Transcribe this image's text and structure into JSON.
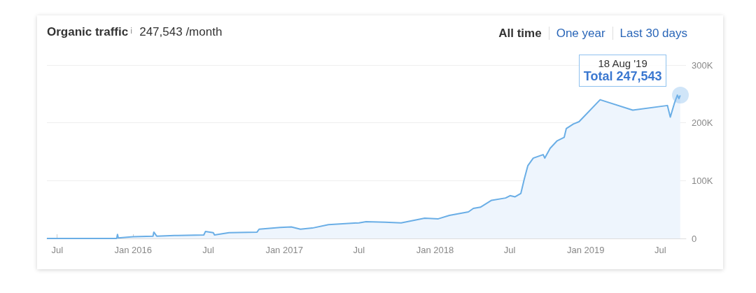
{
  "chart_data": {
    "type": "area",
    "title": "Organic traffic",
    "subtitle": "247,543 /month",
    "annotations": [
      "18 Aug '19",
      "Total 247,543",
      "All time",
      "One year",
      "Last 30 days"
    ],
    "x": [
      "2015-06-06",
      "2015-11-22",
      "2015-11-24",
      "2015-11-26",
      "2016-01-01",
      "2016-02-18",
      "2016-02-20",
      "2016-02-27",
      "2016-04-10",
      "2016-06-20",
      "2016-06-24",
      "2016-07-13",
      "2016-07-16",
      "2016-08-20",
      "2016-10-27",
      "2016-11-01",
      "2016-12-22",
      "2017-01-18",
      "2017-02-09",
      "2017-03-10",
      "2017-04-18",
      "2017-07-01",
      "2017-07-18",
      "2017-09-02",
      "2017-10-11",
      "2017-12-07",
      "2018-01-09",
      "2018-02-05",
      "2018-03-23",
      "2018-04-04",
      "2018-04-21",
      "2018-05-18",
      "2018-06-21",
      "2018-07-02",
      "2018-07-14",
      "2018-07-28",
      "2018-08-05",
      "2018-08-14",
      "2018-08-27",
      "2018-09-20",
      "2018-09-24",
      "2018-10-07",
      "2018-10-24",
      "2018-11-10",
      "2018-11-15",
      "2018-12-02",
      "2018-12-16",
      "2019-02-05",
      "2019-04-25",
      "2019-07-18",
      "2019-07-25",
      "2019-08-04",
      "2019-08-11",
      "2019-08-15",
      "2019-08-18"
    ],
    "series": [
      {
        "color": "#6aaee6",
        "values": [
          0,
          0,
          7000,
          1000,
          3000,
          4000,
          11000,
          4000,
          5000,
          6000,
          12000,
          10000,
          6000,
          10000,
          11000,
          16000,
          19000,
          20000,
          16000,
          18000,
          24000,
          27000,
          29000,
          28000,
          27000,
          35000,
          34000,
          40000,
          46000,
          52000,
          54000,
          66000,
          70000,
          74000,
          72000,
          78000,
          102000,
          126000,
          139000,
          145000,
          139000,
          156000,
          169000,
          175000,
          190000,
          198000,
          202000,
          240000,
          222000,
          230000,
          210000,
          234000,
          248000,
          242000,
          247543
        ]
      }
    ],
    "xlim": [
      "2015-06-06",
      "2019-09-01"
    ],
    "xticks": [
      {
        "value": "2015-07-01",
        "label": "Jul"
      },
      {
        "value": "2016-01-01",
        "label": "Jan 2016"
      },
      {
        "value": "2016-07-01",
        "label": "Jul"
      },
      {
        "value": "2017-01-01",
        "label": "Jan 2017"
      },
      {
        "value": "2017-07-01",
        "label": "Jul"
      },
      {
        "value": "2018-01-01",
        "label": "Jan 2018"
      },
      {
        "value": "2018-07-01",
        "label": "Jul"
      },
      {
        "value": "2019-01-01",
        "label": "Jan 2019"
      },
      {
        "value": "2019-07-01",
        "label": "Jul"
      }
    ],
    "ylim": [
      0,
      300000
    ],
    "yticks": [
      0,
      {
        "value": 100000,
        "label": "100K"
      },
      {
        "value": 200000,
        "label": "200K"
      },
      {
        "value": 300000,
        "label": "300K"
      }
    ],
    "grid": "y",
    "marker": "none"
  }
}
